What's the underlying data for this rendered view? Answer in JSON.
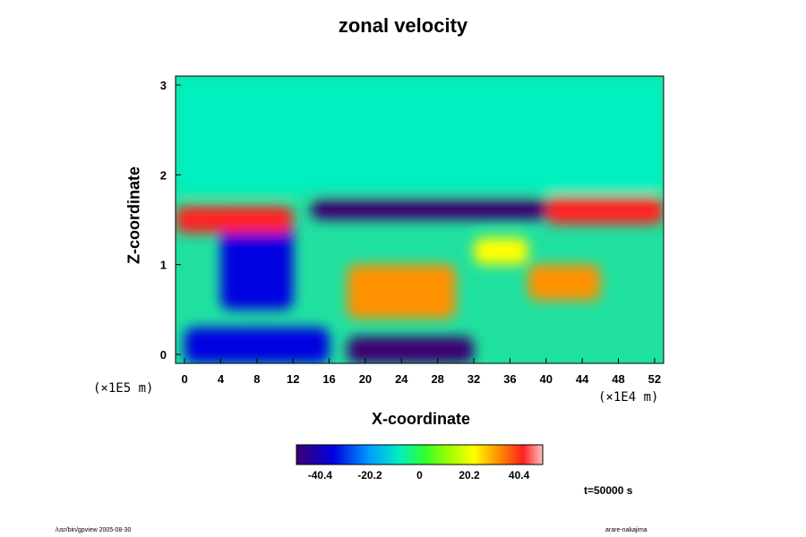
{
  "chart_data": {
    "type": "heatmap",
    "title": "zonal velocity",
    "xlabel": "X-coordinate",
    "ylabel": "Z-coordinate",
    "x_scale_note": "(×1E4 m)",
    "z_scale_note": "(×1E5 m)",
    "xlim": [
      -1,
      53
    ],
    "ylim": [
      -0.1,
      3.1
    ],
    "x_ticks": [
      0,
      4,
      8,
      12,
      16,
      20,
      24,
      28,
      32,
      36,
      40,
      44,
      48,
      52
    ],
    "y_ticks": [
      0,
      1,
      2,
      3
    ],
    "colorbar": {
      "ticks": [
        "-40.4",
        "-20.2",
        "0",
        "20.2",
        "40.4"
      ],
      "tick_values": [
        -40.4,
        -20.2,
        0,
        20.2,
        40.4
      ],
      "range": [
        -50,
        50
      ]
    },
    "regions": [
      {
        "x": [
          -1,
          53
        ],
        "z": [
          1.8,
          3.1
        ],
        "value": 2,
        "note": "upper layer near zero"
      },
      {
        "x": [
          4,
          12
        ],
        "z": [
          0.5,
          1.5
        ],
        "value": -20
      },
      {
        "x": [
          18,
          30
        ],
        "z": [
          0.4,
          1.0
        ],
        "value": 35
      },
      {
        "x": [
          32,
          38
        ],
        "z": [
          1.0,
          1.3
        ],
        "value": 30
      },
      {
        "x": [
          38,
          46
        ],
        "z": [
          0.6,
          1.0
        ],
        "value": 40
      },
      {
        "x": [
          18,
          32
        ],
        "z": [
          -0.1,
          0.2
        ],
        "value": -40
      },
      {
        "x": [
          0,
          16
        ],
        "z": [
          -0.1,
          0.3
        ],
        "value": -30
      },
      {
        "x": [
          14,
          40
        ],
        "z": [
          1.5,
          1.75
        ],
        "value": -35
      },
      {
        "x": [
          -1,
          12
        ],
        "z": [
          1.35,
          1.65
        ],
        "value": 45
      },
      {
        "x": [
          40,
          53
        ],
        "z": [
          1.45,
          1.75
        ],
        "value": 45
      }
    ]
  },
  "annotations": {
    "time": "t=50000 s",
    "footer_left": "/usr/bin/gpview 2005-08-30",
    "footer_right": "arare-nakajima"
  }
}
